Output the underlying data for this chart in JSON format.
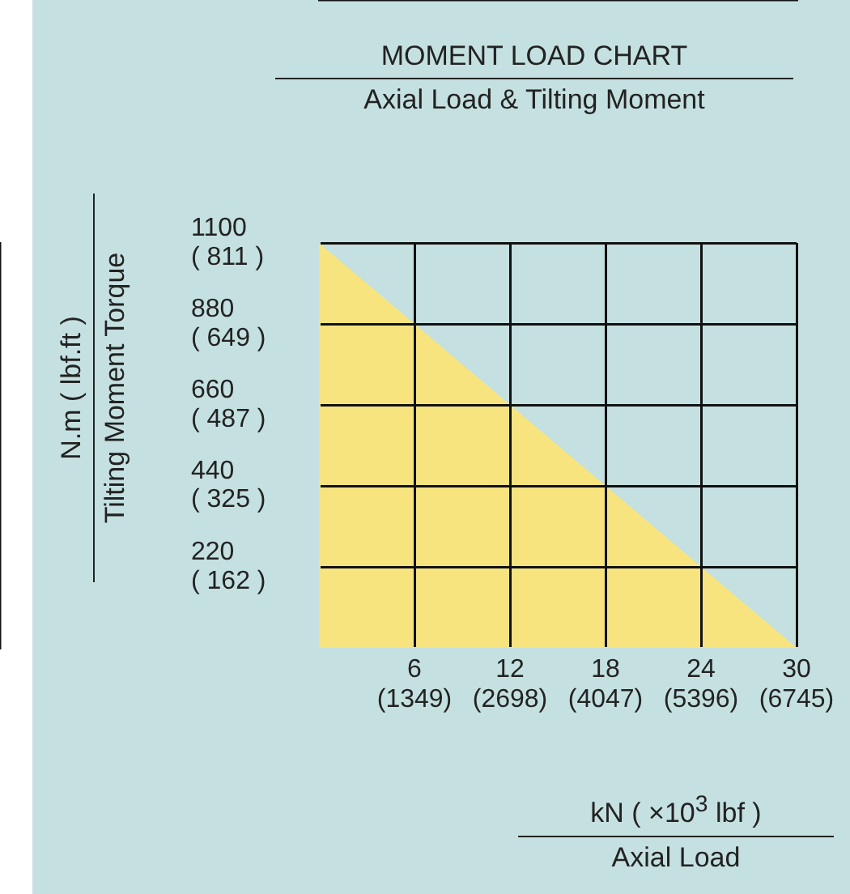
{
  "chart_data": {
    "type": "area",
    "title": "MOMENT LOAD CHART",
    "subtitle": "Axial Load & Tilting Moment",
    "xlabel": "kN  ( ×10$^{3}$ lbf )\nAxial Load",
    "ylabel": "N.m  ( lbf.ft )\nTilting Moment Torque",
    "x": [
      0,
      30
    ],
    "values": [
      1100,
      0
    ],
    "color": "#f7e47f",
    "xlim": [
      0,
      30
    ],
    "ylim": [
      0,
      1100
    ],
    "xticks": [
      6,
      12,
      18,
      24,
      30
    ],
    "yticks": [
      220,
      440,
      660,
      880,
      1100
    ],
    "x2lim": [
      0,
      6745
    ],
    "x2ticks": [
      {
        "value": 1349,
        "label": "(1349)"
      },
      {
        "value": 2698,
        "label": "(2698)"
      },
      {
        "value": 4047,
        "label": "(4047)"
      },
      {
        "value": 5396,
        "label": "(5396)"
      },
      {
        "value": 6745,
        "label": "(6745)"
      }
    ],
    "y2lim": [
      0,
      811
    ],
    "y2ticks": [
      {
        "value": 162,
        "label": "( 162 )"
      },
      {
        "value": 325,
        "label": "( 325 )"
      },
      {
        "value": 487,
        "label": "( 487 )"
      },
      {
        "value": 649,
        "label": "( 649 )"
      },
      {
        "value": 811,
        "label": "( 811 )"
      }
    ],
    "grid": true
  }
}
